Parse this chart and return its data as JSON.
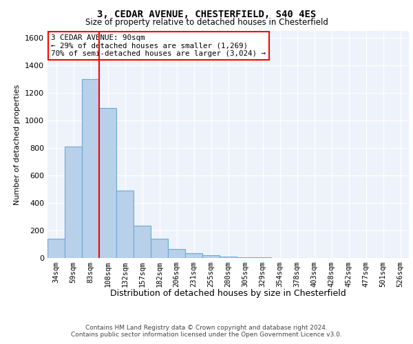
{
  "title1": "3, CEDAR AVENUE, CHESTERFIELD, S40 4ES",
  "title2": "Size of property relative to detached houses in Chesterfield",
  "xlabel": "Distribution of detached houses by size in Chesterfield",
  "ylabel": "Number of detached properties",
  "bins": [
    "34sqm",
    "59sqm",
    "83sqm",
    "108sqm",
    "132sqm",
    "157sqm",
    "182sqm",
    "206sqm",
    "231sqm",
    "255sqm",
    "280sqm",
    "305sqm",
    "329sqm",
    "354sqm",
    "378sqm",
    "403sqm",
    "428sqm",
    "452sqm",
    "477sqm",
    "501sqm",
    "526sqm"
  ],
  "values": [
    140,
    810,
    1300,
    1090,
    490,
    235,
    140,
    65,
    35,
    20,
    10,
    5,
    3,
    2,
    1,
    1,
    1,
    0,
    0,
    0,
    0
  ],
  "bar_color": "#b8d0ea",
  "bar_edge_color": "#6aaad4",
  "property_line_x": 2.48,
  "annotation_text1": "3 CEDAR AVENUE: 90sqm",
  "annotation_text2": "← 29% of detached houses are smaller (1,269)",
  "annotation_text3": "70% of semi-detached houses are larger (3,024) →",
  "footer1": "Contains HM Land Registry data © Crown copyright and database right 2024.",
  "footer2": "Contains public sector information licensed under the Open Government Licence v3.0.",
  "ylim": [
    0,
    1650
  ],
  "yticks": [
    0,
    200,
    400,
    600,
    800,
    1000,
    1200,
    1400,
    1600
  ],
  "background_color": "#eef2fb"
}
